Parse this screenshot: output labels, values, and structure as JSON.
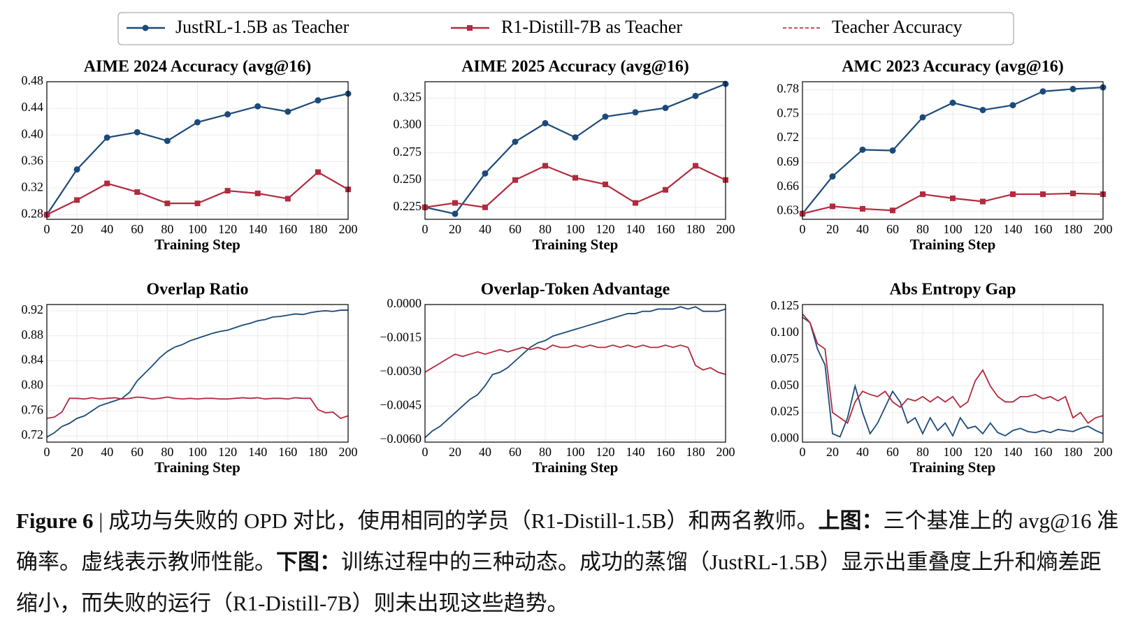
{
  "legend_extra": {
    "name": "Teacher Accuracy",
    "color": "#c8383e",
    "dash": true
  },
  "caption": {
    "label": "Figure 6",
    "intro": " | 成功与失败的 OPD 对比，使用相同的学员（R1-Distill-1.5B）和两名教师。",
    "top_label": "上图：",
    "top_text": "三个基准上的 avg@16 准确率。虚线表示教师性能。",
    "bottom_label": "下图：",
    "bottom_text": "训练过程中的三种动态。成功的蒸馏（JustRL-1.5B）显示出重叠度上升和熵差距缩小，而失败的运行（R1-Distill-7B）则未出现这些趋势。"
  },
  "chart_data": [
    {
      "type": "line",
      "title": "AIME 2024 Accuracy (avg@16)",
      "xlabel": "Training Step",
      "grid": true,
      "x": [
        0,
        20,
        40,
        60,
        80,
        100,
        120,
        140,
        160,
        180,
        200
      ],
      "xlim": [
        0,
        200
      ],
      "xticks": [
        0,
        20,
        40,
        60,
        80,
        100,
        120,
        140,
        160,
        180,
        200
      ],
      "ylim": [
        0.273,
        0.48
      ],
      "yticks": [
        0.28,
        0.32,
        0.36,
        {
          "value": 0.4,
          "label": "0.40"
        },
        0.44,
        0.48
      ],
      "series": [
        {
          "name": "JustRL-1.5B as Teacher",
          "color": "#1b4a7a",
          "marker": "circle",
          "values": [
            0.28,
            0.348,
            0.396,
            0.404,
            0.391,
            0.419,
            0.431,
            0.443,
            0.435,
            0.452,
            0.462
          ]
        },
        {
          "name": "R1-Distill-7B as Teacher",
          "color": "#b22a3e",
          "marker": "square",
          "values": [
            0.28,
            0.302,
            0.327,
            0.314,
            0.297,
            0.297,
            0.316,
            0.312,
            0.304,
            0.344,
            0.318
          ]
        }
      ]
    },
    {
      "type": "line",
      "title": "AIME 2025 Accuracy (avg@16)",
      "xlabel": "Training Step",
      "grid": true,
      "x": [
        0,
        20,
        40,
        60,
        80,
        100,
        120,
        140,
        160,
        180,
        200
      ],
      "xlim": [
        0,
        200
      ],
      "xticks": [
        0,
        20,
        40,
        60,
        80,
        100,
        120,
        140,
        160,
        180,
        200
      ],
      "ylim": [
        0.214,
        0.34
      ],
      "yticks": [
        0.225,
        {
          "value": 0.25,
          "label": "0.250"
        },
        0.275,
        {
          "value": 0.3,
          "label": "0.300"
        },
        0.325
      ],
      "series": [
        {
          "name": "JustRL-1.5B as Teacher",
          "color": "#1b4a7a",
          "marker": "circle",
          "values": [
            0.225,
            0.219,
            0.256,
            0.285,
            0.302,
            0.289,
            0.308,
            0.312,
            0.316,
            0.327,
            0.338
          ]
        },
        {
          "name": "R1-Distill-7B as Teacher",
          "color": "#b22a3e",
          "marker": "square",
          "values": [
            0.225,
            0.229,
            0.225,
            0.25,
            0.263,
            0.252,
            0.246,
            0.229,
            0.241,
            0.263,
            0.25
          ]
        }
      ]
    },
    {
      "type": "line",
      "title": "AMC 2023 Accuracy (avg@16)",
      "xlabel": "Training Step",
      "grid": true,
      "x": [
        0,
        20,
        40,
        60,
        80,
        100,
        120,
        140,
        160,
        180,
        200
      ],
      "xlim": [
        0,
        200
      ],
      "xticks": [
        0,
        20,
        40,
        60,
        80,
        100,
        120,
        140,
        160,
        180,
        200
      ],
      "ylim": [
        0.62,
        0.79
      ],
      "yticks": [
        0.63,
        0.66,
        0.69,
        0.72,
        0.75,
        0.78
      ],
      "series": [
        {
          "name": "JustRL-1.5B as Teacher",
          "color": "#1b4a7a",
          "marker": "circle",
          "values": [
            0.627,
            0.673,
            0.706,
            0.705,
            0.746,
            0.764,
            0.755,
            0.761,
            0.778,
            0.781,
            0.783
          ]
        },
        {
          "name": "R1-Distill-7B as Teacher",
          "color": "#b22a3e",
          "marker": "square",
          "values": [
            0.627,
            0.636,
            0.633,
            0.631,
            0.651,
            0.646,
            0.642,
            0.651,
            0.651,
            0.652,
            0.651
          ]
        }
      ]
    },
    {
      "type": "line",
      "title": "Overlap Ratio",
      "xlabel": "Training Step",
      "grid": true,
      "x": [
        0,
        5,
        10,
        15,
        20,
        25,
        30,
        35,
        40,
        45,
        50,
        55,
        60,
        65,
        70,
        75,
        80,
        85,
        90,
        95,
        100,
        105,
        110,
        115,
        120,
        125,
        130,
        135,
        140,
        145,
        150,
        155,
        160,
        165,
        170,
        175,
        180,
        185,
        190,
        195,
        200
      ],
      "xlim": [
        0,
        200
      ],
      "xticks": [
        0,
        20,
        40,
        60,
        80,
        100,
        120,
        140,
        160,
        180,
        200
      ],
      "ylim": [
        0.71,
        0.93
      ],
      "yticks": [
        0.72,
        0.76,
        {
          "value": 0.8,
          "label": "0.80"
        },
        0.84,
        0.88,
        0.92
      ],
      "series": [
        {
          "name": "JustRL-1.5B as Teacher",
          "color": "#1b4a7a",
          "values": [
            0.718,
            0.725,
            0.735,
            0.74,
            0.748,
            0.752,
            0.76,
            0.768,
            0.772,
            0.776,
            0.78,
            0.79,
            0.808,
            0.82,
            0.832,
            0.845,
            0.855,
            0.862,
            0.866,
            0.872,
            0.876,
            0.88,
            0.884,
            0.887,
            0.889,
            0.893,
            0.897,
            0.9,
            0.904,
            0.906,
            0.91,
            0.911,
            0.913,
            0.915,
            0.914,
            0.917,
            0.919,
            0.92,
            0.919,
            0.921,
            0.921
          ]
        },
        {
          "name": "R1-Distill-7B as Teacher",
          "color": "#b22a3e",
          "values": [
            0.748,
            0.75,
            0.758,
            0.78,
            0.78,
            0.779,
            0.781,
            0.779,
            0.78,
            0.781,
            0.779,
            0.78,
            0.782,
            0.781,
            0.779,
            0.78,
            0.782,
            0.78,
            0.779,
            0.78,
            0.779,
            0.78,
            0.78,
            0.779,
            0.779,
            0.78,
            0.781,
            0.78,
            0.781,
            0.779,
            0.78,
            0.78,
            0.779,
            0.781,
            0.78,
            0.78,
            0.762,
            0.757,
            0.758,
            0.748,
            0.752
          ]
        }
      ]
    },
    {
      "type": "line",
      "title": "Overlap-Token Advantage",
      "xlabel": "Training Step",
      "grid": true,
      "x": [
        0,
        5,
        10,
        15,
        20,
        25,
        30,
        35,
        40,
        45,
        50,
        55,
        60,
        65,
        70,
        75,
        80,
        85,
        90,
        95,
        100,
        105,
        110,
        115,
        120,
        125,
        130,
        135,
        140,
        145,
        150,
        155,
        160,
        165,
        170,
        175,
        180,
        185,
        190,
        195,
        200
      ],
      "xlim": [
        0,
        200
      ],
      "xticks": [
        0,
        20,
        40,
        60,
        80,
        100,
        120,
        140,
        160,
        180,
        200
      ],
      "ylim": [
        -0.0061,
        0.0
      ],
      "yticks": [
        {
          "value": 0,
          "label": "0.0000"
        },
        {
          "value": -0.0015,
          "label": "−0.0015"
        },
        {
          "value": -0.003,
          "label": "−0.0030"
        },
        {
          "value": -0.0045,
          "label": "−0.0045"
        },
        {
          "value": -0.006,
          "label": "−0.0060"
        }
      ],
      "series": [
        {
          "name": "JustRL-1.5B as Teacher",
          "color": "#1b4a7a",
          "values": [
            -0.0059,
            -0.0056,
            -0.0054,
            -0.0051,
            -0.0048,
            -0.0045,
            -0.0042,
            -0.004,
            -0.0036,
            -0.0031,
            -0.003,
            -0.0028,
            -0.0025,
            -0.0022,
            -0.0019,
            -0.0017,
            -0.0016,
            -0.0014,
            -0.0013,
            -0.0012,
            -0.0011,
            -0.001,
            -0.0009,
            -0.0008,
            -0.0007,
            -0.0006,
            -0.0005,
            -0.0004,
            -0.0004,
            -0.0003,
            -0.0003,
            -0.0002,
            -0.0002,
            -0.0002,
            -0.0001,
            -0.0002,
            -0.0001,
            -0.0003,
            -0.0003,
            -0.0003,
            -0.0002
          ]
        },
        {
          "name": "R1-Distill-7B as Teacher",
          "color": "#b22a3e",
          "values": [
            -0.003,
            -0.0028,
            -0.0026,
            -0.0024,
            -0.0022,
            -0.0023,
            -0.0022,
            -0.0021,
            -0.0022,
            -0.0021,
            -0.002,
            -0.0021,
            -0.002,
            -0.0019,
            -0.002,
            -0.0019,
            -0.002,
            -0.0018,
            -0.0019,
            -0.0019,
            -0.0018,
            -0.0019,
            -0.0018,
            -0.0019,
            -0.0019,
            -0.0018,
            -0.0019,
            -0.0018,
            -0.0019,
            -0.0018,
            -0.0019,
            -0.0019,
            -0.0018,
            -0.0019,
            -0.0018,
            -0.0019,
            -0.0027,
            -0.0029,
            -0.0028,
            -0.003,
            -0.0031
          ]
        }
      ]
    },
    {
      "type": "line",
      "title": "Abs Entropy Gap",
      "xlabel": "Training Step",
      "grid": true,
      "x": [
        0,
        5,
        10,
        15,
        20,
        25,
        30,
        35,
        40,
        45,
        50,
        55,
        60,
        65,
        70,
        75,
        80,
        85,
        90,
        95,
        100,
        105,
        110,
        115,
        120,
        125,
        130,
        135,
        140,
        145,
        150,
        155,
        160,
        165,
        170,
        175,
        180,
        185,
        190,
        195,
        200
      ],
      "xlim": [
        0,
        200
      ],
      "xticks": [
        0,
        20,
        40,
        60,
        80,
        100,
        120,
        140,
        160,
        180,
        200
      ],
      "ylim": [
        -0.003,
        0.127
      ],
      "yticks": [
        {
          "value": 0,
          "label": "0.000"
        },
        0.025,
        {
          "value": 0.05,
          "label": "0.050"
        },
        0.075,
        {
          "value": 0.1,
          "label": "0.100"
        },
        0.125
      ],
      "series": [
        {
          "name": "JustRL-1.5B as Teacher",
          "color": "#1b4a7a",
          "values": [
            0.115,
            0.11,
            0.085,
            0.07,
            0.005,
            0.002,
            0.02,
            0.05,
            0.025,
            0.005,
            0.015,
            0.03,
            0.045,
            0.035,
            0.015,
            0.02,
            0.005,
            0.02,
            0.008,
            0.015,
            0.003,
            0.02,
            0.01,
            0.012,
            0.005,
            0.015,
            0.006,
            0.003,
            0.008,
            0.01,
            0.007,
            0.006,
            0.008,
            0.006,
            0.009,
            0.008,
            0.007,
            0.01,
            0.012,
            0.008,
            0.005
          ]
        },
        {
          "name": "R1-Distill-7B as Teacher",
          "color": "#b22a3e",
          "values": [
            0.118,
            0.11,
            0.09,
            0.085,
            0.025,
            0.02,
            0.015,
            0.035,
            0.045,
            0.042,
            0.04,
            0.045,
            0.035,
            0.03,
            0.038,
            0.036,
            0.04,
            0.035,
            0.04,
            0.035,
            0.04,
            0.03,
            0.035,
            0.055,
            0.065,
            0.05,
            0.04,
            0.035,
            0.035,
            0.04,
            0.04,
            0.042,
            0.038,
            0.04,
            0.036,
            0.04,
            0.02,
            0.025,
            0.015,
            0.02,
            0.022
          ]
        }
      ]
    }
  ]
}
